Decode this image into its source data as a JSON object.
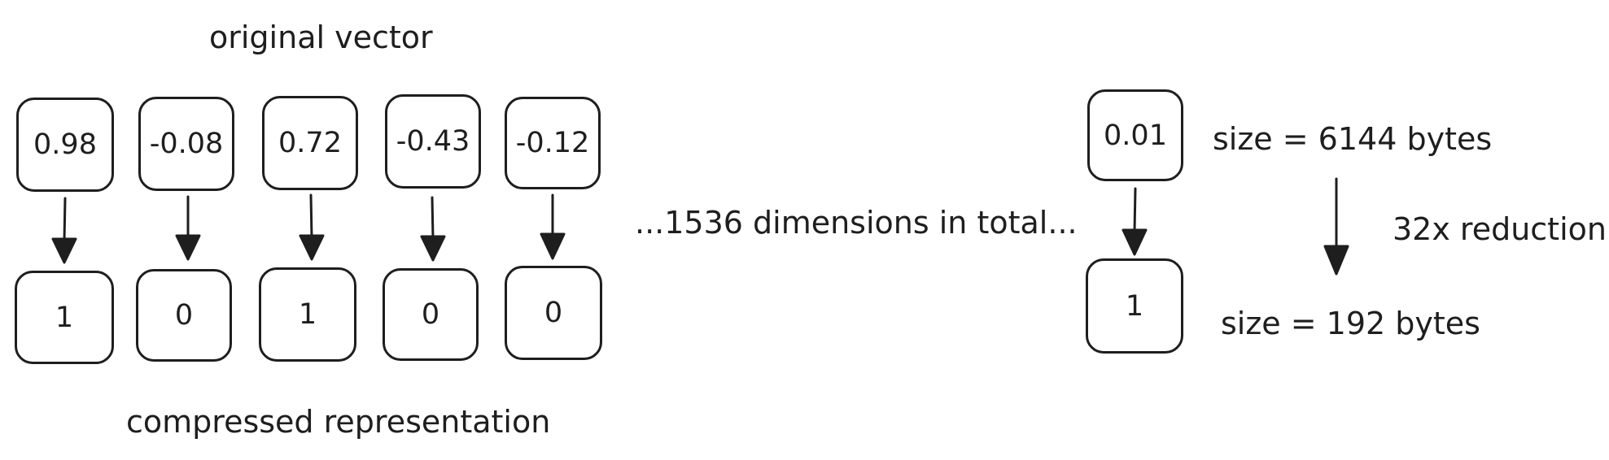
{
  "title_top": "original vector",
  "title_bottom": "compressed representation",
  "middle_note": "...1536 dimensions in total...",
  "original_values": [
    "0.98",
    "-0.08",
    "0.72",
    "-0.43",
    "-0.12"
  ],
  "compressed_values": [
    "1",
    "0",
    "1",
    "0",
    "0"
  ],
  "example": {
    "original_value": "0.01",
    "compressed_value": "1",
    "size_before": "size = 6144 bytes",
    "size_after": "size = 192 bytes",
    "reduction": "32x reduction"
  },
  "colors": {
    "stroke": "#1e1e1e",
    "background": "#ffffff"
  }
}
